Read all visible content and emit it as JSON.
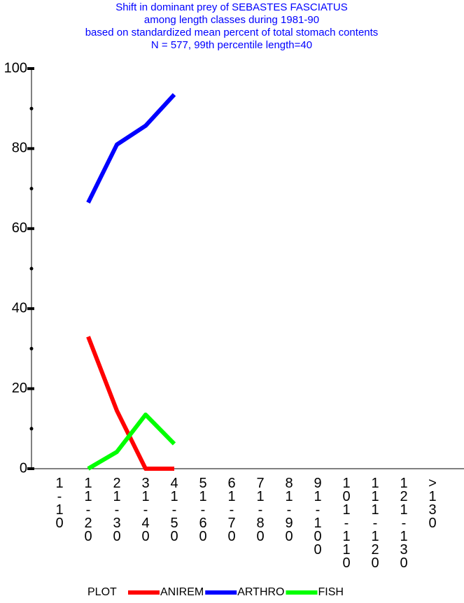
{
  "chart_data": {
    "type": "line",
    "title": [
      "Shift in dominant prey of SEBASTES FASCIATUS",
      "among length classes during 1981-90",
      "based on standardized mean percent of  total stomach contents",
      "N = 577, 99th percentile  length=40"
    ],
    "categories": [
      "1-10",
      "11-20",
      "21-30",
      "31-40",
      "41-50",
      "51-60",
      "61-70",
      "71-80",
      "81-90",
      "91-100",
      "101-110",
      "111-120",
      "121-130",
      ">130"
    ],
    "legend_title": "PLOT",
    "series": [
      {
        "name": "ANIREM",
        "color": "#ff0000",
        "values": [
          null,
          33,
          14.5,
          0,
          0,
          null,
          null,
          null,
          null,
          null,
          null,
          null,
          null,
          null
        ]
      },
      {
        "name": "ARTHRO",
        "color": "#0000ff",
        "values": [
          null,
          66.5,
          81,
          85.7,
          93.5,
          null,
          null,
          null,
          null,
          null,
          null,
          null,
          null,
          null
        ]
      },
      {
        "name": "FISH",
        "color": "#00ff00",
        "values": [
          null,
          0,
          4.2,
          13.5,
          6.2,
          null,
          null,
          null,
          null,
          null,
          null,
          null,
          null,
          null
        ]
      }
    ],
    "ylim": [
      0,
      100
    ],
    "yticks": [
      0,
      20,
      40,
      60,
      80,
      100
    ],
    "yminor": [
      10,
      30,
      50,
      70,
      90
    ]
  }
}
